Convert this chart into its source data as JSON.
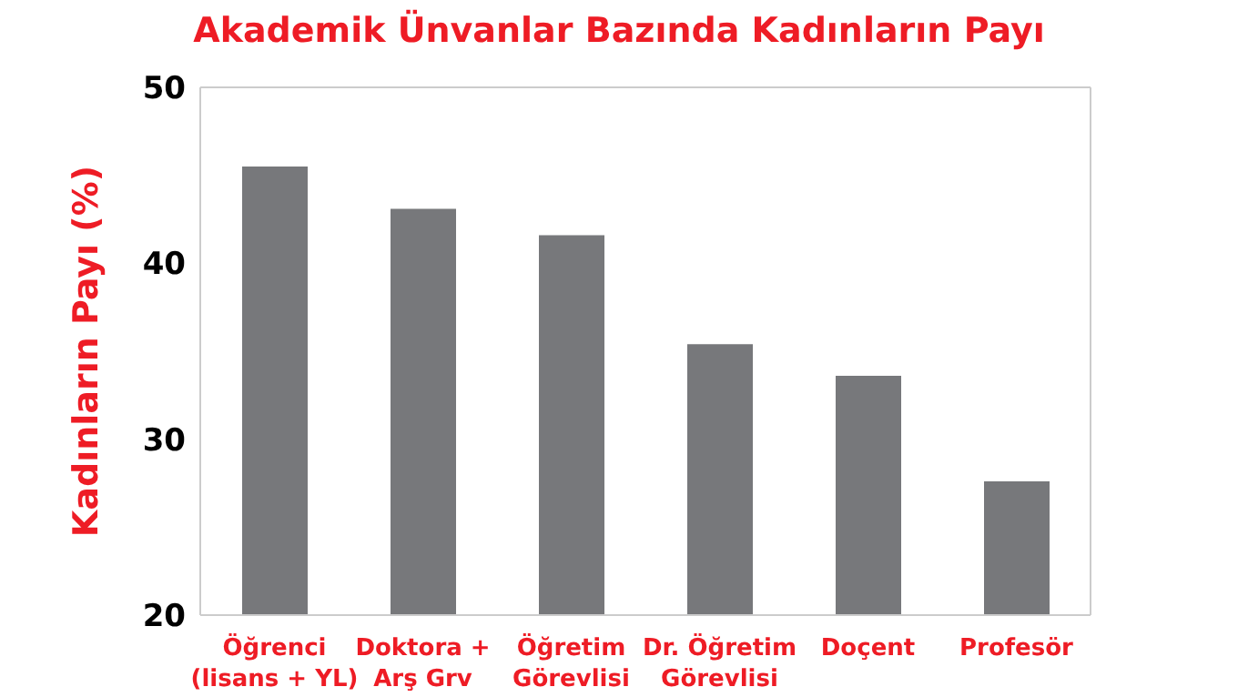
{
  "chart_data": {
    "type": "bar",
    "title": "Akademik Ünvanlar Bazında Kadınların Payı",
    "ylabel": "Kadınların Payı (%)",
    "categories": [
      "Öğrenci\n(lisans + YL)",
      "Doktora +\nArş Grv",
      "Öğretim\nGörevlisi",
      "Dr. Öğretim\nGörevlisi",
      "Doçent",
      "Profesör"
    ],
    "values": [
      45.5,
      43.1,
      41.6,
      35.4,
      33.6,
      27.6
    ],
    "color": "#77787b",
    "ylim": [
      20,
      50
    ],
    "yticks": [
      20,
      30,
      40,
      50
    ],
    "grid": false
  }
}
